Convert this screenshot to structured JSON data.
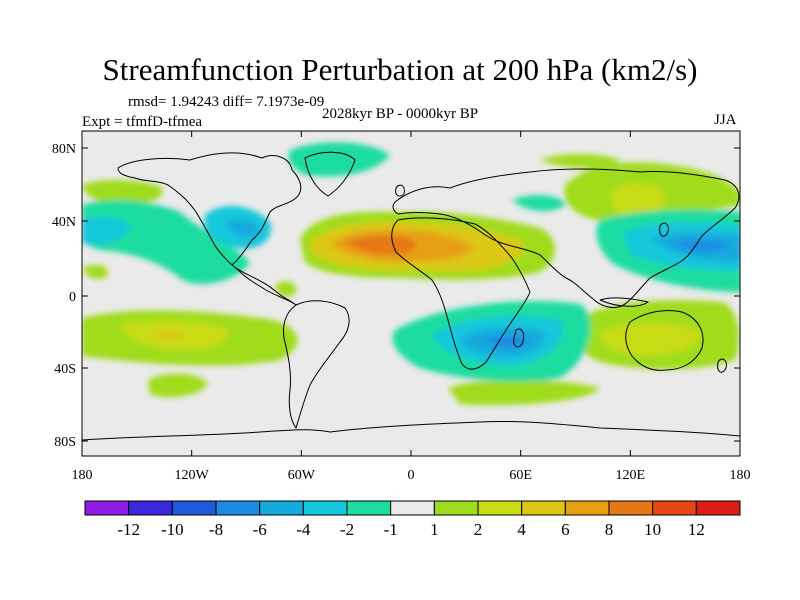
{
  "title": "Streamfunction Perturbation at 200 hPa (km2/s)",
  "stats": "rmsd= 1.94243 diff= 7.1973e-09",
  "experiment": "Expt = tfmfD-tfmea",
  "period": "2028kyr BP - 0000kyr BP",
  "season": "JJA",
  "map": {
    "lat_ticks": [
      "80N",
      "40N",
      "0",
      "40S",
      "80S"
    ],
    "lon_ticks": [
      "180",
      "120W",
      "60W",
      "0",
      "60E",
      "120E",
      "180"
    ]
  },
  "colorbar": {
    "labels": [
      "-12",
      "-10",
      "-8",
      "-6",
      "-4",
      "-2",
      "-1",
      "1",
      "2",
      "4",
      "6",
      "8",
      "10",
      "12"
    ],
    "colors": [
      "#8e1ee6",
      "#3c28dc",
      "#1e5adc",
      "#1e8ce6",
      "#14aadc",
      "#14c8dc",
      "#1edca0",
      "#eaeaea",
      "#a0dc1e",
      "#c8dc14",
      "#dcc814",
      "#e6a014",
      "#e67814",
      "#e64614",
      "#dc1e14"
    ]
  },
  "colors": {
    "background": "#eaeaea",
    "coast": "#000000"
  }
}
